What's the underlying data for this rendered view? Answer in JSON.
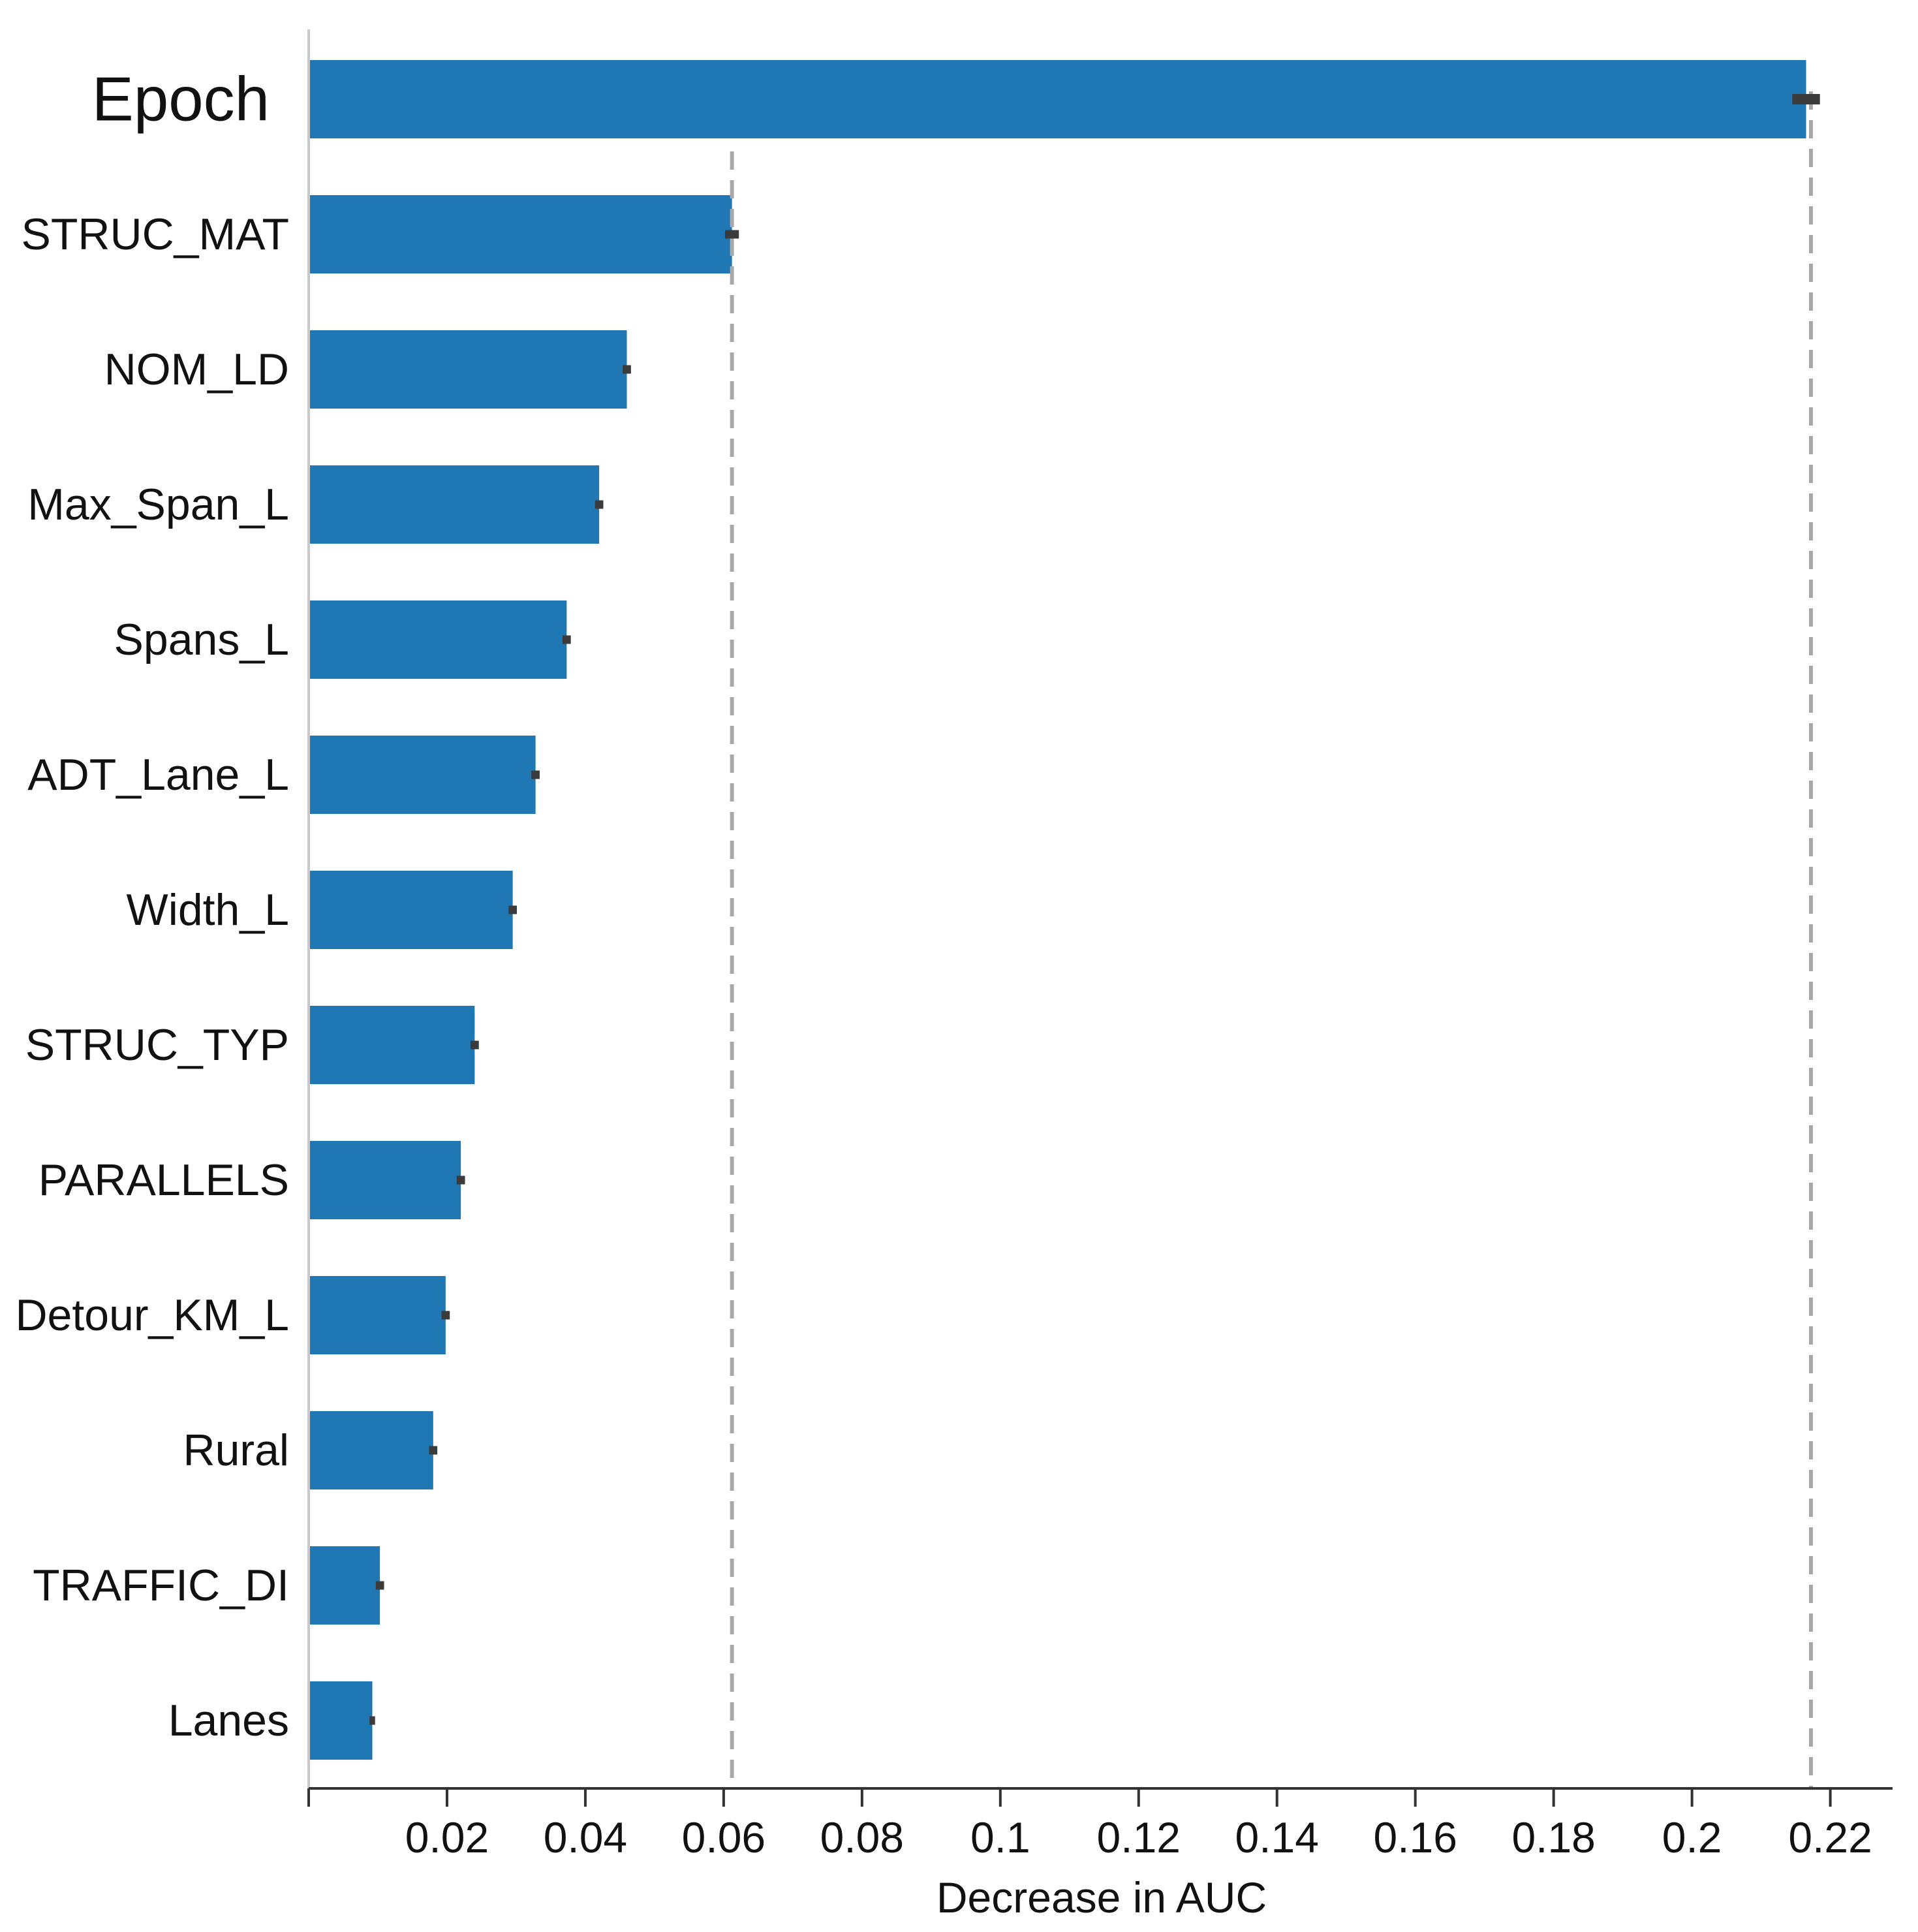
{
  "chart_data": {
    "type": "bar",
    "orientation": "horizontal",
    "categories": [
      "Epoch",
      "STRUC_MAT",
      "NOM_LD",
      "Max_Span_L",
      "Spans_L",
      "ADT_Lane_L",
      "Width_L",
      "STRUC_TYP",
      "PARALLELS",
      "Detour_KM_L",
      "Rural",
      "TRAFFIC_DI",
      "Lanes"
    ],
    "values": [
      0.2165,
      0.0612,
      0.046,
      0.042,
      0.0373,
      0.0328,
      0.0295,
      0.024,
      0.022,
      0.0198,
      0.018,
      0.0103,
      0.0092
    ],
    "errors": [
      0.002,
      0.001,
      0.0006,
      0.0006,
      0.0006,
      0.0006,
      0.0006,
      0.0006,
      0.0006,
      0.0006,
      0.0006,
      0.0006,
      0.0004
    ],
    "emphasized_category": "Epoch",
    "reference_lines": [
      0.0612,
      0.2172
    ],
    "xlabel": "Decrease in AUC",
    "ylabel": "",
    "title": "",
    "xlim": [
      0,
      0.229
    ],
    "xticks": [
      0.02,
      0.04,
      0.06,
      0.08,
      0.1,
      0.12,
      0.14,
      0.16,
      0.18,
      0.2,
      0.22
    ],
    "xtick_labels": [
      "0.02",
      "0.04",
      "0.06",
      "0.08",
      "0.1",
      "0.12",
      "0.14",
      "0.16",
      "0.18",
      "0.2",
      "0.22"
    ],
    "grid": false,
    "legend": "none",
    "colors": {
      "bar": "#1f77b4",
      "error_bar": "#3b3b3b",
      "reference_line": "#a8a8a8",
      "axis": "#333333",
      "left_spine": "#c9c9c9"
    }
  }
}
